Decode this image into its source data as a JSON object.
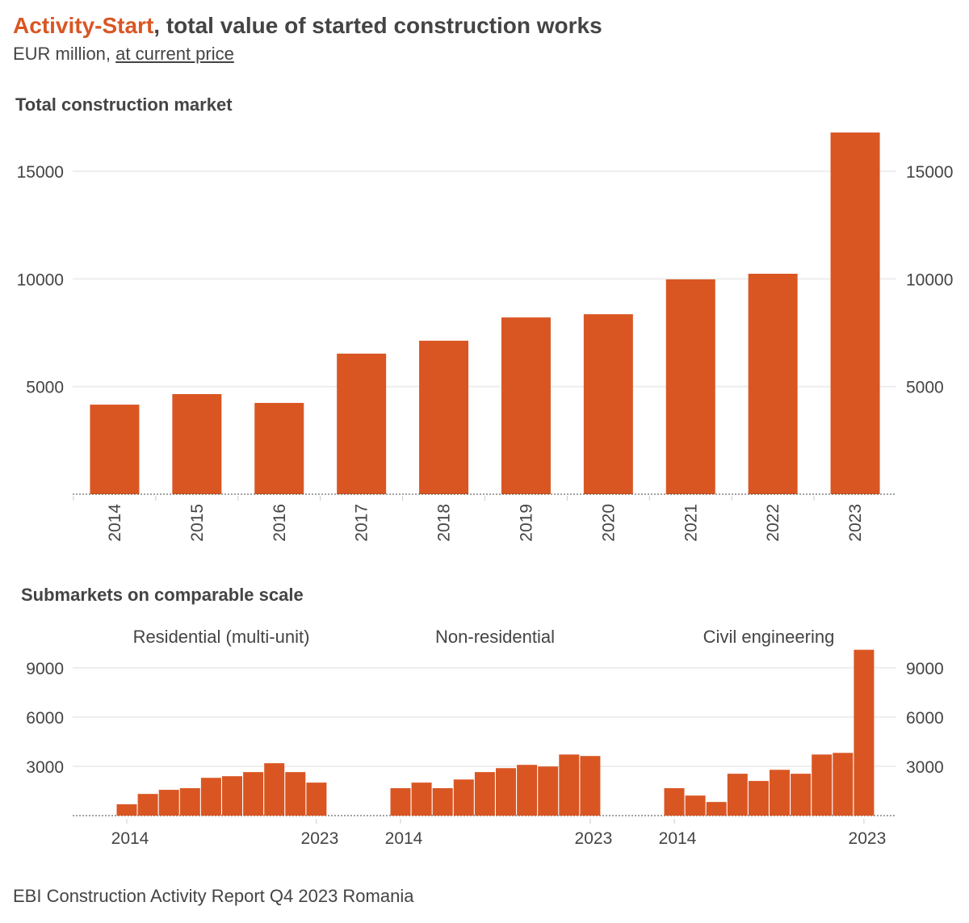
{
  "header": {
    "title_highlight": "Activity-Start",
    "title_rest": ", total value of started construction works",
    "subtitle_plain": "EUR million, ",
    "subtitle_link": "at current price"
  },
  "footer": "EBI Construction Activity Report Q4 2023 Romania",
  "colors": {
    "bar": "#d95623",
    "grid": "#eeeeee",
    "text": "#444444"
  },
  "chart_data": [
    {
      "type": "bar",
      "title": "Total construction market",
      "categories": [
        "2014",
        "2015",
        "2016",
        "2017",
        "2018",
        "2019",
        "2020",
        "2021",
        "2022",
        "2023"
      ],
      "values": [
        4160,
        4650,
        4240,
        6530,
        7130,
        8210,
        8360,
        9980,
        10240,
        16800
      ],
      "yticks": [
        5000,
        10000,
        15000
      ],
      "ylim": [
        0,
        17000
      ],
      "grid": true,
      "xlabel": "",
      "ylabel": ""
    },
    {
      "type": "bar",
      "title": "Submarkets on comparable scale",
      "yticks": [
        3000,
        6000,
        9000
      ],
      "ylim": [
        0,
        10300
      ],
      "grid": true,
      "categories": [
        "2014",
        "2015",
        "2016",
        "2017",
        "2018",
        "2019",
        "2020",
        "2021",
        "2022",
        "2023"
      ],
      "tick_labels": [
        "2014",
        "2023"
      ],
      "panels": [
        {
          "name": "Residential (multi-unit)",
          "values": [
            690,
            1320,
            1570,
            1670,
            2300,
            2400,
            2650,
            3190,
            2650,
            2010
          ]
        },
        {
          "name": "Non-residential",
          "values": [
            1670,
            2010,
            1670,
            2200,
            2650,
            2890,
            3090,
            2990,
            3720,
            3630
          ]
        },
        {
          "name": "Civil engineering",
          "values": [
            1670,
            1220,
            830,
            2550,
            2110,
            2790,
            2550,
            3720,
            3820,
            10100
          ]
        }
      ]
    }
  ]
}
